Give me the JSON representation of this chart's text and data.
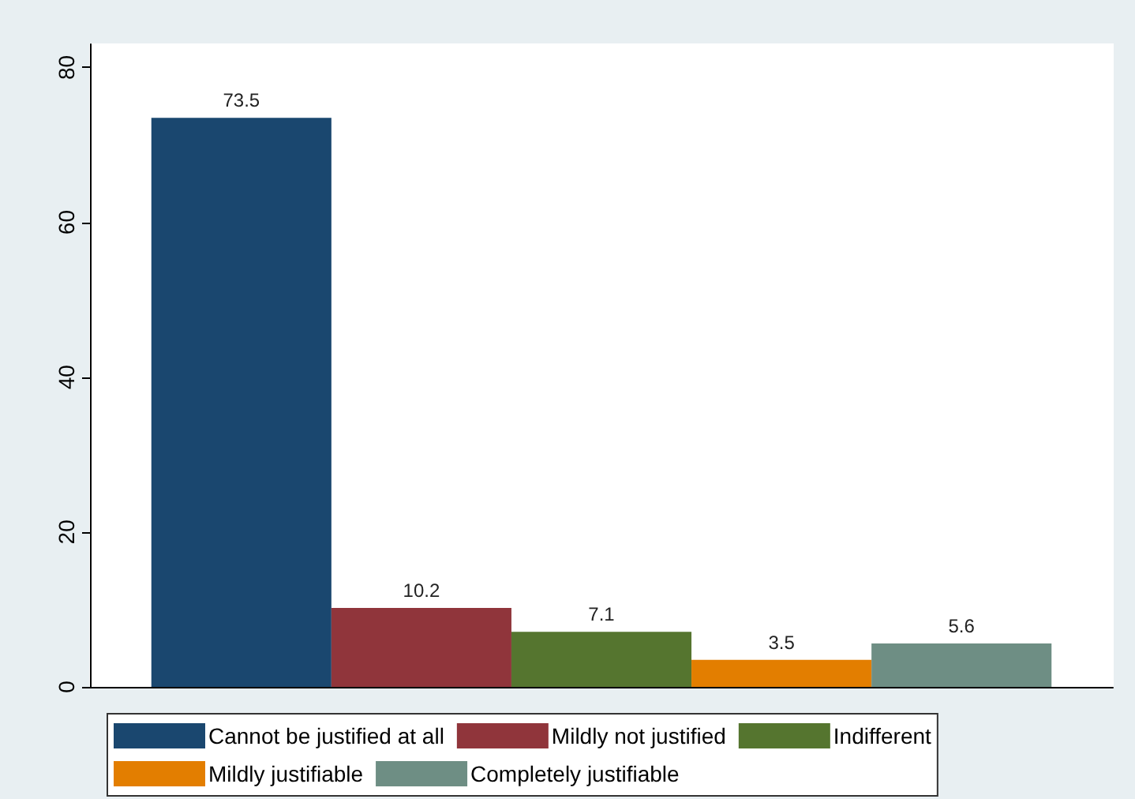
{
  "chart_data": {
    "type": "bar",
    "categories": [
      null
    ],
    "series": [
      {
        "name": "Cannot be justified at all",
        "color": "#1a476f",
        "values": [
          73.5
        ]
      },
      {
        "name": "Mildly not justified",
        "color": "#90353b",
        "values": [
          10.2
        ]
      },
      {
        "name": "Indifferent",
        "color": "#55752f",
        "values": [
          7.1
        ]
      },
      {
        "name": "Mildly justifiable",
        "color": "#e37e00",
        "values": [
          3.5
        ]
      },
      {
        "name": "Completely justifiable",
        "color": "#6e8e84",
        "values": [
          5.6
        ]
      }
    ],
    "ylim": [
      0,
      83
    ],
    "yticks": [
      0,
      20,
      40,
      60,
      80
    ],
    "grid": false,
    "legend": "bottom",
    "data_labels": true
  }
}
